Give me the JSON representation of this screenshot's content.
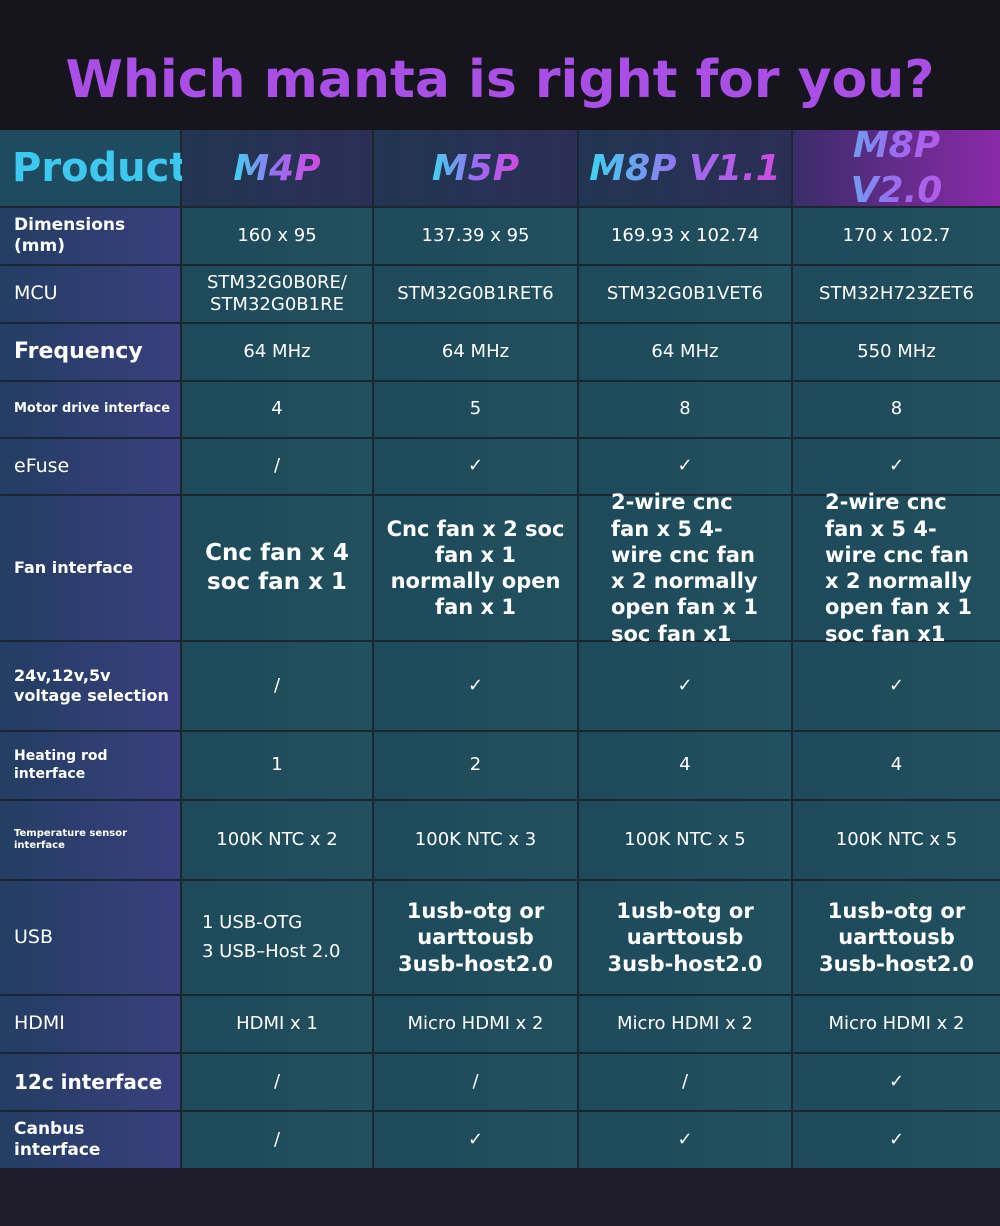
{
  "title": "Which manta is right for you?",
  "table": {
    "headers": [
      "Product",
      "M4P",
      "M5P",
      "M8P V1.1",
      "M8P V2.0"
    ],
    "rows": [
      {
        "label": "Dimensions (mm)",
        "cells": [
          "160 x 95",
          "137.39 x 95",
          "169.93 x 102.74",
          "170 x 102.7"
        ]
      },
      {
        "label": "MCU",
        "cells": [
          "STM32G0B0RE/\nSTM32G0B1RE",
          "STM32G0B1RET6",
          "STM32G0B1VET6",
          "STM32H723ZET6"
        ]
      },
      {
        "label": "Frequency",
        "cells": [
          "64 MHz",
          "64 MHz",
          "64 MHz",
          "550 MHz"
        ]
      },
      {
        "label": "Motor drive interface",
        "cells": [
          "4",
          "5",
          "8",
          "8"
        ]
      },
      {
        "label": "eFuse",
        "cells": [
          "/",
          "✓",
          "✓",
          "✓"
        ]
      },
      {
        "label": "Fan interface",
        "cells": [
          "Cnc fan x 4 soc fan x 1",
          "Cnc fan x 2 soc fan x 1 normally open fan x 1",
          "2-wire cnc fan x 5 4-wire cnc fan x 2 normally open fan x 1 soc fan x1",
          "2-wire cnc fan x 5 4-wire cnc fan x 2 normally open fan x 1 soc fan x1"
        ]
      },
      {
        "label": "24v,12v,5v\nvoltage selection",
        "cells": [
          "/",
          "✓",
          "✓",
          "✓"
        ]
      },
      {
        "label": "Heating rod interface",
        "cells": [
          "1",
          "2",
          "4",
          "4"
        ]
      },
      {
        "label": "Temperature sensor interface",
        "cells": [
          "100K NTC x 2",
          "100K NTC x 3",
          "100K NTC x 5",
          "100K NTC x 5"
        ]
      },
      {
        "label": "USB",
        "cells": [
          "1 USB-OTG\n3 USB–Host 2.0",
          "1usb-otg or\nuarttousb\n3usb-host2.0",
          "1usb-otg or\nuarttousb\n3usb-host2.0",
          "1usb-otg or\nuarttousb\n3usb-host2.0"
        ]
      },
      {
        "label": "HDMI",
        "cells": [
          "HDMI x 1",
          "Micro HDMI x 2",
          "Micro HDMI x 2",
          "Micro HDMI x 2"
        ]
      },
      {
        "label": "12c interface",
        "cells": [
          "/",
          "/",
          "/",
          "✓"
        ]
      },
      {
        "label": "Canbus interface",
        "cells": [
          "/",
          "✓",
          "✓",
          "✓"
        ]
      }
    ]
  }
}
